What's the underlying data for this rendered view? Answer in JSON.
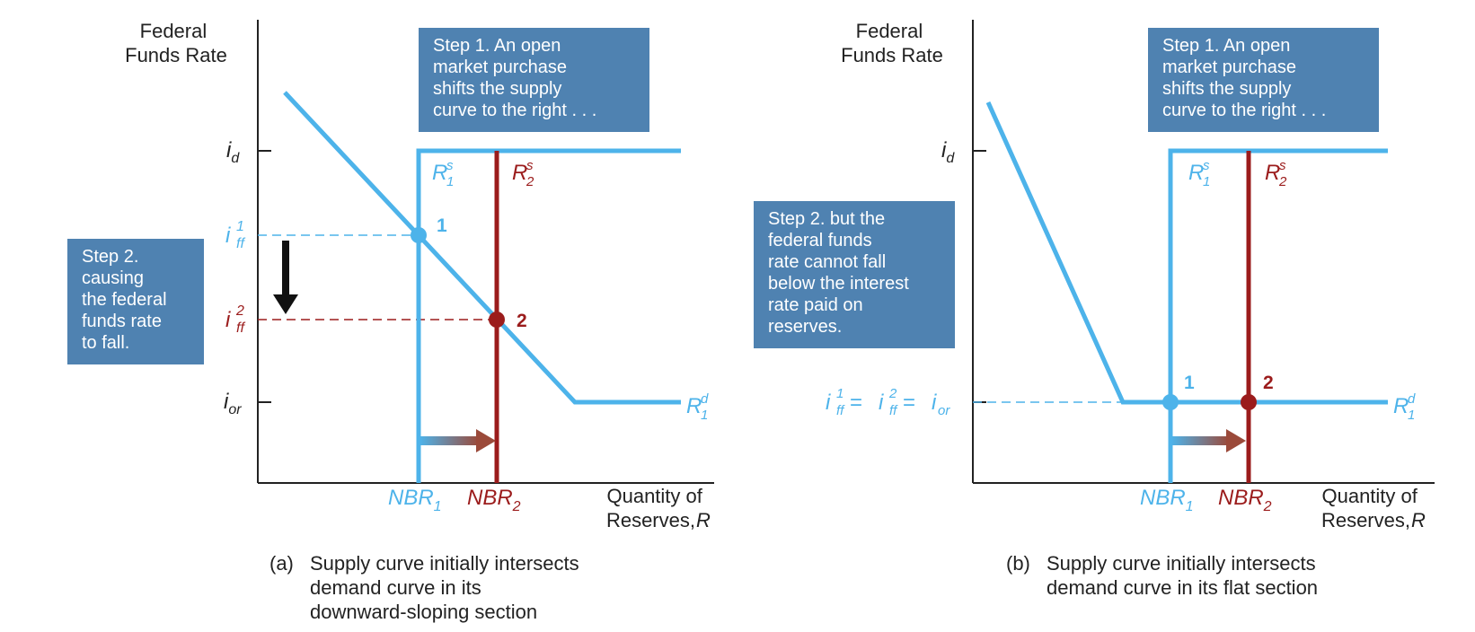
{
  "panel_a": {
    "y_axis_title": [
      "Federal",
      "Funds Rate"
    ],
    "x_axis_title": [
      "Quantity of",
      "Reserves, "
    ],
    "x_axis_var": "R",
    "rates": {
      "i_d": {
        "base": "i",
        "sub": "d"
      },
      "i_ff1": {
        "base": "i",
        "sup": "1",
        "sub": "ff"
      },
      "i_ff2": {
        "base": "i",
        "sup": "2",
        "sub": "ff"
      },
      "i_or": {
        "base": "i",
        "sub": "or"
      }
    },
    "supply1": {
      "base": "R",
      "sup": "s",
      "sub": "1"
    },
    "supply2": {
      "base": "R",
      "sup": "s",
      "sub": "2"
    },
    "demand": {
      "base": "R",
      "sup": "d",
      "sub": "1"
    },
    "nbr1": {
      "base": "NBR",
      "sub": "1"
    },
    "nbr2": {
      "base": "NBR",
      "sub": "2"
    },
    "point1": "1",
    "point2": "2",
    "step1": [
      "Step 1. An open",
      "market purchase",
      "shifts the supply",
      "curve to the right . . ."
    ],
    "step2": [
      "Step 2.",
      "causing",
      "the federal",
      "funds rate",
      "to fall."
    ],
    "caption_label": "(a)",
    "caption": [
      "Supply curve initially intersects",
      "demand curve in its",
      "downward-sloping section"
    ]
  },
  "panel_b": {
    "y_axis_title": [
      "Federal",
      "Funds Rate"
    ],
    "x_axis_title": [
      "Quantity of",
      "Reserves, "
    ],
    "x_axis_var": "R",
    "rates": {
      "i_d": {
        "base": "i",
        "sub": "d"
      },
      "equal": {
        "a_base": "i",
        "a_sup": "1",
        "a_sub": "ff",
        "eq1": " = ",
        "b_base": "i",
        "b_sup": "2",
        "b_sub": "ff",
        "eq2": " = ",
        "c_base": "i",
        "c_sub": "or"
      }
    },
    "supply1": {
      "base": "R",
      "sup": "s",
      "sub": "1"
    },
    "supply2": {
      "base": "R",
      "sup": "s",
      "sub": "2"
    },
    "demand": {
      "base": "R",
      "sup": "d",
      "sub": "1"
    },
    "nbr1": {
      "base": "NBR",
      "sub": "1"
    },
    "nbr2": {
      "base": "NBR",
      "sub": "2"
    },
    "point1": "1",
    "point2": "2",
    "step1": [
      "Step 1. An open",
      "market purchase",
      "shifts the supply",
      "curve to the right . . ."
    ],
    "step2": [
      "Step 2. but the",
      "federal funds",
      "rate cannot fall",
      "below the interest",
      "rate paid on",
      "reserves."
    ],
    "caption_label": "(b)",
    "caption": [
      "Supply curve initially intersects",
      "demand curve in its flat section"
    ]
  },
  "colors": {
    "light_blue": "#4db3ea",
    "dark_red": "#9b1c1c",
    "box_blue": "#4f82b1",
    "axis": "#222222"
  }
}
